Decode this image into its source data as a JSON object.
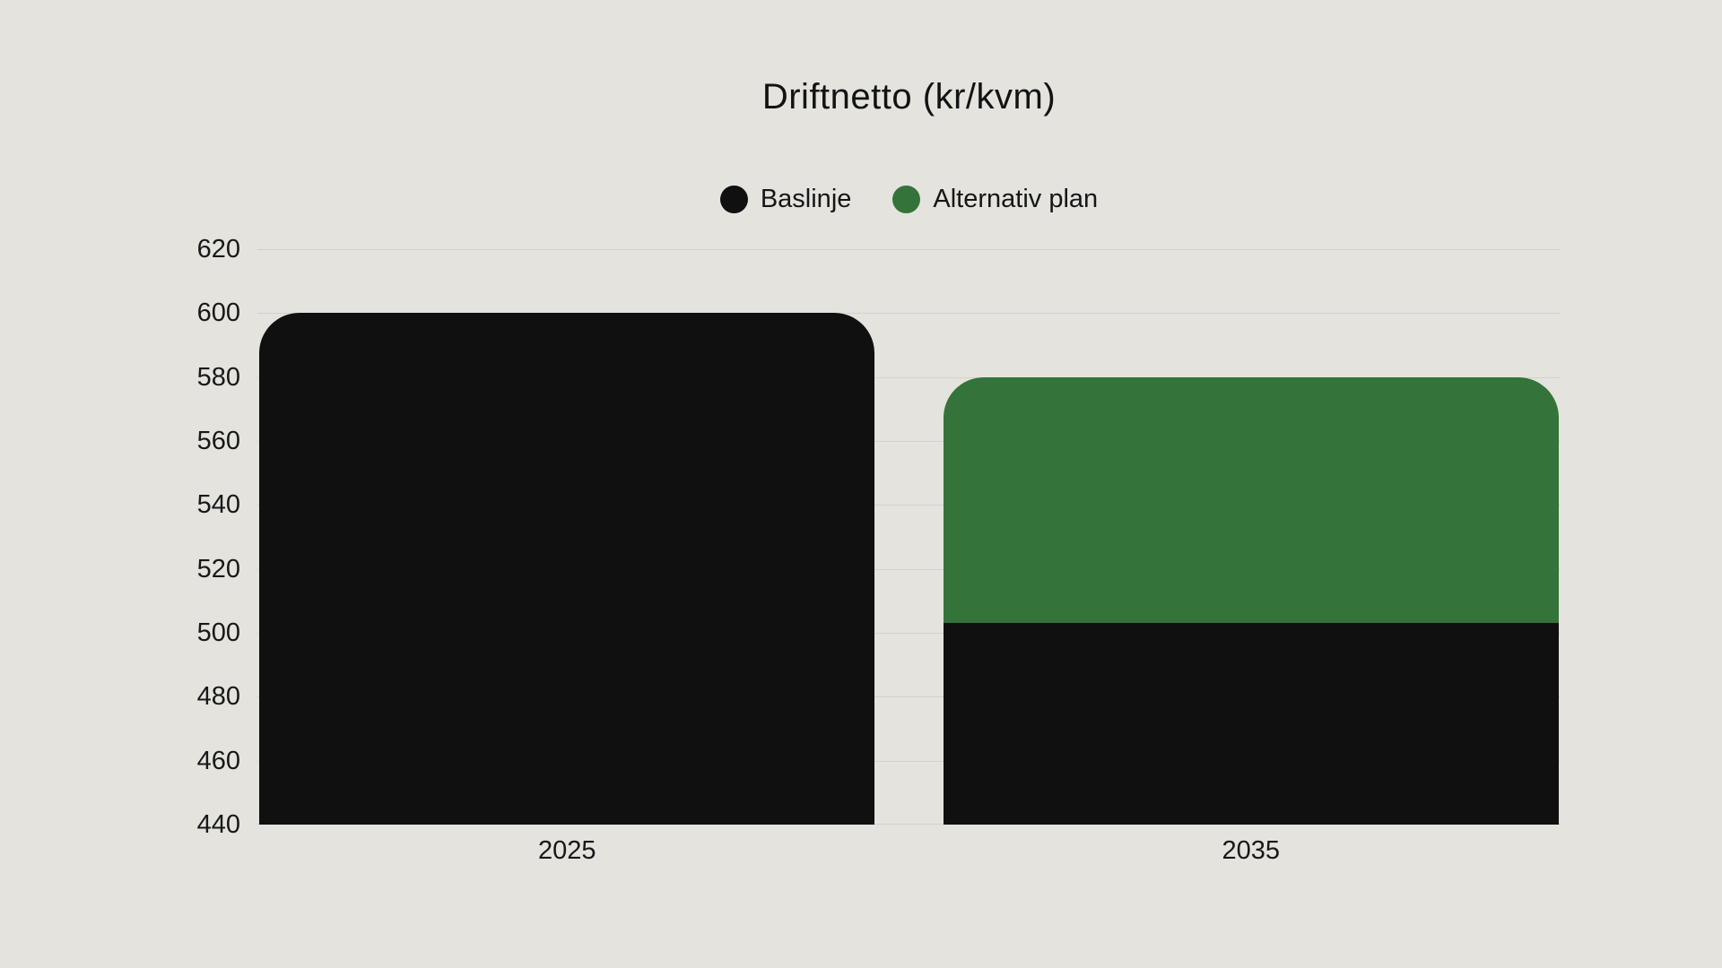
{
  "page": {
    "background_color": "#e4e3de",
    "text_color": "#161616"
  },
  "chart_data": {
    "type": "bar",
    "title": "Driftnetto (kr/kvm)",
    "categories": [
      "2025",
      "2035"
    ],
    "series": [
      {
        "name": "Baslinje",
        "color": "#111010",
        "values": [
          600,
          503
        ]
      },
      {
        "name": "Alternativ plan",
        "color": "#347339",
        "values": [
          null,
          580
        ]
      }
    ],
    "ylim": [
      440,
      620
    ],
    "yticks": [
      440,
      460,
      480,
      500,
      520,
      540,
      560,
      580,
      600,
      620
    ],
    "xlabel": "",
    "ylabel": "",
    "grid": true,
    "gridline_color": "#d2d1cd",
    "legend_position": "top-center",
    "bar_corner_radius": 45,
    "note": "Full-width rounded-top bars. 2025: black Baslinje bar tops at 600. 2035: black Baslinje portion tops at ~503 with green Alternativ plan segment above it topping at 580."
  }
}
